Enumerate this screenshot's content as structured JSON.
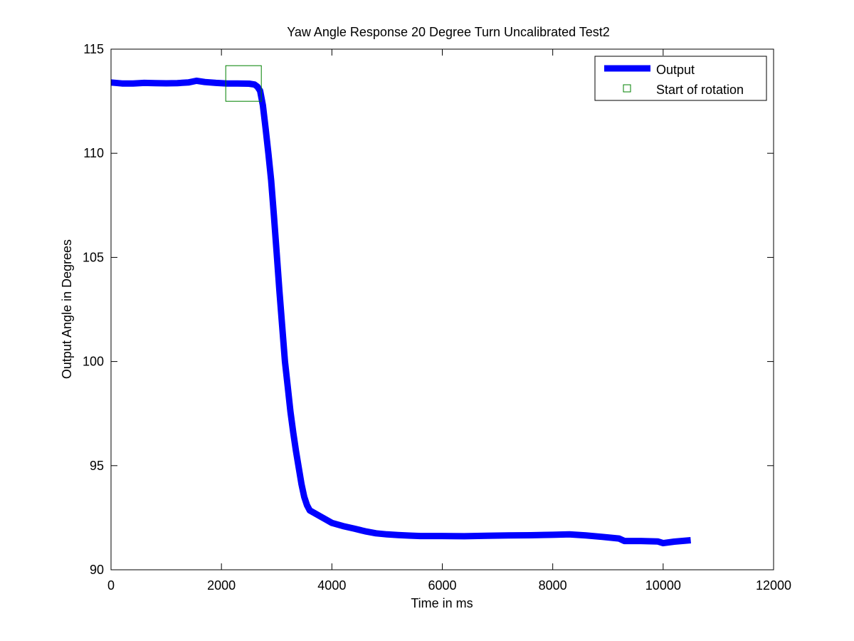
{
  "chart_data": {
    "type": "line",
    "title": "Yaw Angle Response 20 Degree Turn Uncalibrated Test2",
    "xlabel": "Time in ms",
    "ylabel": "Output Angle in Degrees",
    "xlim": [
      0,
      12000
    ],
    "ylim": [
      90,
      115
    ],
    "xticks": [
      0,
      2000,
      4000,
      6000,
      8000,
      10000,
      12000
    ],
    "yticks": [
      90,
      95,
      100,
      105,
      110,
      115
    ],
    "xtick_labels": [
      "0",
      "2000",
      "4000",
      "6000",
      "8000",
      "10000",
      "12000"
    ],
    "ytick_labels": [
      "90",
      "95",
      "100",
      "105",
      "110",
      "115"
    ],
    "grid": false,
    "legend": {
      "position": "top-right",
      "entries": [
        "Output",
        "Start of rotation"
      ]
    },
    "series": [
      {
        "name": "Output",
        "color": "#0000ff",
        "marker": "none",
        "x": [
          0,
          200,
          400,
          600,
          800,
          1000,
          1200,
          1400,
          1550,
          1700,
          1900,
          2100,
          2300,
          2500,
          2600,
          2650,
          2700,
          2750,
          2800,
          2850,
          2900,
          2950,
          3000,
          3050,
          3100,
          3150,
          3200,
          3250,
          3300,
          3350,
          3400,
          3450,
          3500,
          3550,
          3600,
          3700,
          3800,
          3900,
          4000,
          4200,
          4400,
          4600,
          4800,
          5000,
          5200,
          5400,
          5600,
          5800,
          6000,
          6400,
          6800,
          7200,
          7600,
          8000,
          8300,
          8600,
          8900,
          9200,
          9300,
          9600,
          9900,
          10000,
          10200,
          10500
        ],
        "y": [
          113.4,
          113.35,
          113.35,
          113.38,
          113.37,
          113.36,
          113.37,
          113.4,
          113.48,
          113.42,
          113.38,
          113.35,
          113.35,
          113.34,
          113.3,
          113.2,
          113.0,
          112.3,
          111.2,
          110.0,
          108.7,
          107.0,
          105.2,
          103.4,
          101.7,
          100.0,
          98.8,
          97.6,
          96.6,
          95.7,
          94.9,
          94.1,
          93.5,
          93.1,
          92.85,
          92.7,
          92.55,
          92.4,
          92.25,
          92.1,
          91.98,
          91.85,
          91.75,
          91.7,
          91.67,
          91.64,
          91.62,
          91.62,
          91.62,
          91.61,
          91.63,
          91.65,
          91.66,
          91.68,
          91.7,
          91.65,
          91.58,
          91.5,
          91.38,
          91.38,
          91.36,
          91.28,
          91.35,
          91.42
        ]
      },
      {
        "name": "Start of rotation",
        "color": "#008000",
        "marker": "square",
        "x": [
          2400
        ],
        "y": [
          113.35
        ]
      }
    ]
  }
}
